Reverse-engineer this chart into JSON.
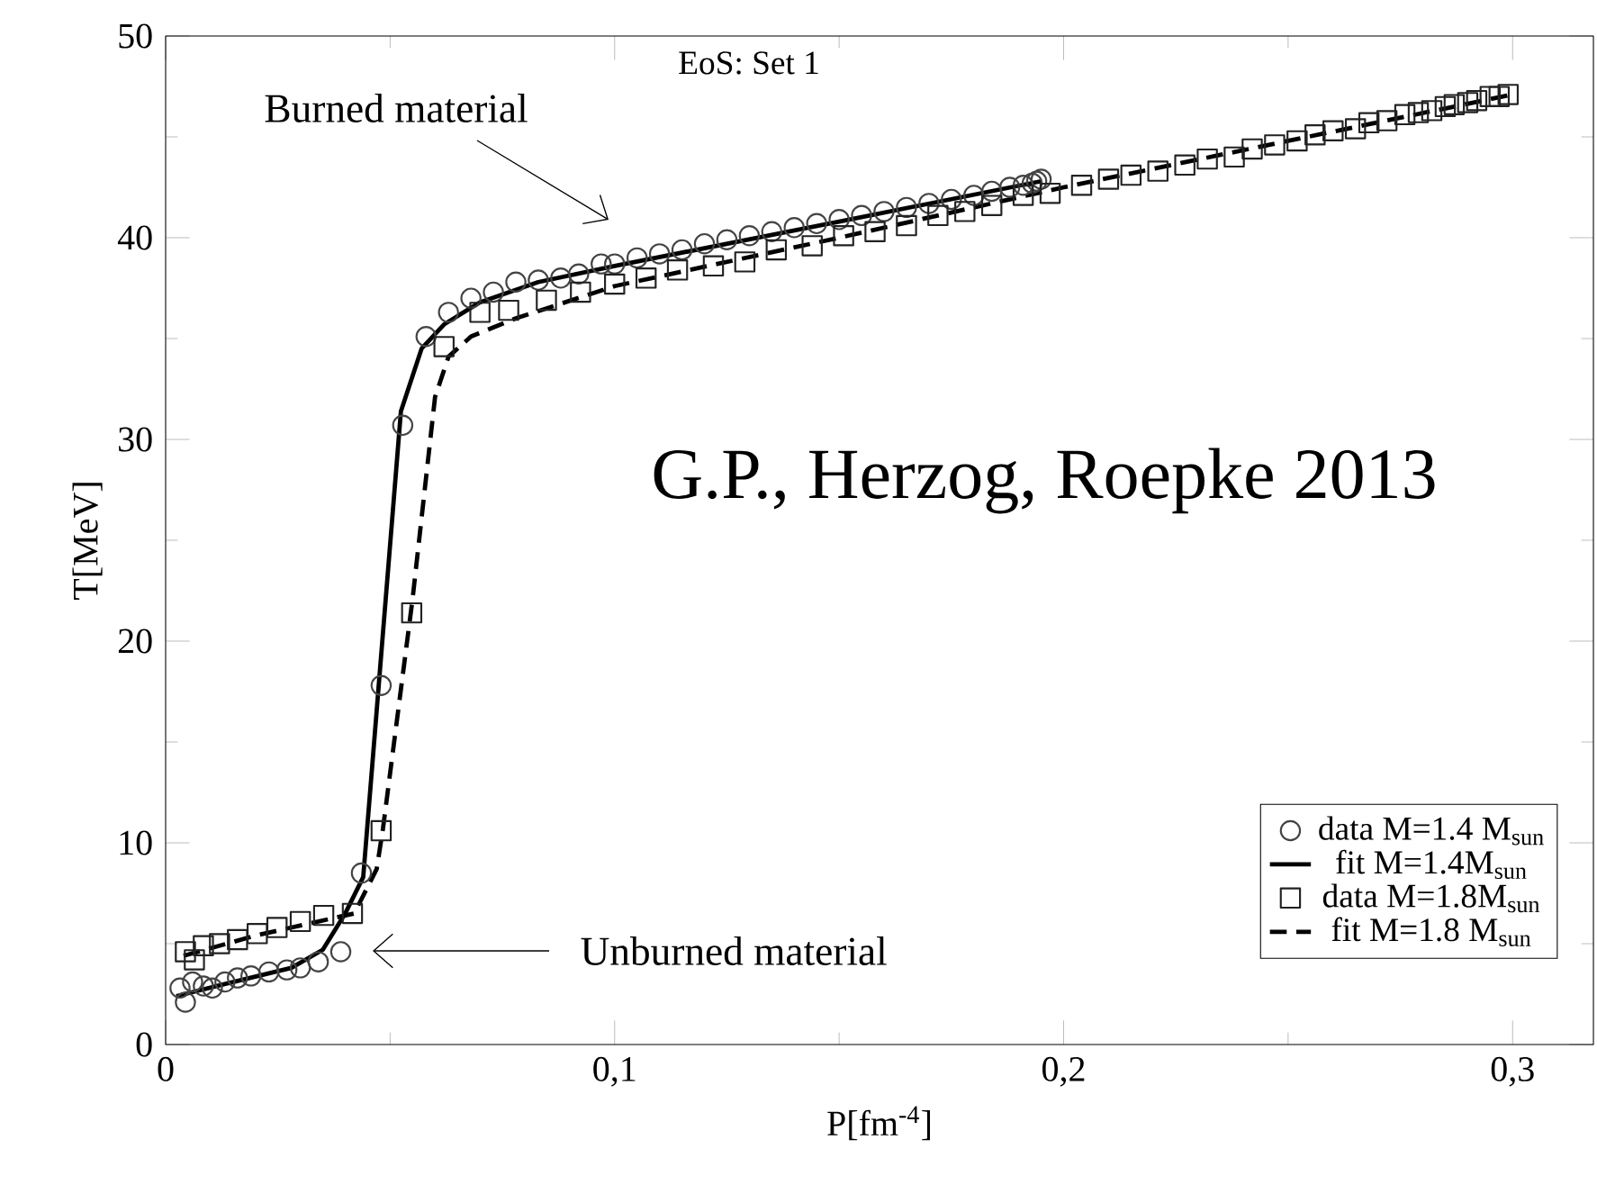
{
  "chart_data": {
    "type": "line",
    "xlabel": "P[fm$^{-4}$]",
    "ylabel": "T[MeV]",
    "xlim": [
      0,
      0.318
    ],
    "ylim": [
      0,
      50
    ],
    "xticks": [
      0,
      {
        "value": 0.1,
        "label": "0,1"
      },
      {
        "value": 0.2,
        "label": "0,2"
      },
      {
        "value": 0.3,
        "label": "0,3"
      }
    ],
    "yticks": [
      0,
      10,
      20,
      30,
      40,
      50
    ],
    "legend": "bottom right",
    "annotations": [
      "Burned material",
      "EoS: Set 1",
      "G.P., Herzog, Roepke 2013",
      "Unburned material"
    ],
    "series": [
      {
        "name": "data M=1.4 M$_{sun}$",
        "type": "scatter",
        "marker": "circle",
        "color": "#444444",
        "x": [
          0.0032,
          0.0044,
          0.006,
          0.0084,
          0.0104,
          0.0132,
          0.016,
          0.019,
          0.023,
          0.027,
          0.03,
          0.034,
          0.039,
          0.0436,
          0.048,
          0.0528,
          0.058,
          0.063,
          0.068,
          0.073,
          0.078,
          0.083,
          0.088,
          0.092,
          0.097,
          0.1,
          0.105,
          0.11,
          0.115,
          0.12,
          0.125,
          0.13,
          0.135,
          0.14,
          0.145,
          0.15,
          0.155,
          0.16,
          0.165,
          0.17,
          0.175,
          0.18,
          0.184,
          0.188,
          0.191,
          0.193,
          0.194,
          0.195
        ],
        "values": [
          2.8,
          2.1,
          3.1,
          2.9,
          2.8,
          3.1,
          3.3,
          3.4,
          3.6,
          3.7,
          3.8,
          4.1,
          4.6,
          8.5,
          17.8,
          30.7,
          35.1,
          36.3,
          37.0,
          37.3,
          37.8,
          37.9,
          38.0,
          38.2,
          38.7,
          38.7,
          39.0,
          39.2,
          39.4,
          39.7,
          39.9,
          40.1,
          40.3,
          40.5,
          40.7,
          40.9,
          41.1,
          41.3,
          41.5,
          41.7,
          41.9,
          42.1,
          42.3,
          42.5,
          42.6,
          42.7,
          42.8,
          42.9
        ]
      },
      {
        "name": "fit  M=1.4M$_{sun}$",
        "line_style": "solid",
        "color": "#000000",
        "x": [
          0.0024,
          0.015,
          0.028,
          0.035,
          0.04,
          0.044,
          0.0524,
          0.057,
          0.062,
          0.07,
          0.083,
          0.1,
          0.15,
          0.195
        ],
        "values": [
          2.4,
          3.1,
          3.8,
          4.7,
          6.5,
          8.3,
          31.4,
          34.5,
          35.7,
          36.8,
          37.8,
          38.6,
          40.8,
          42.8
        ]
      },
      {
        "name": "data M=1.8M$_{sun}$",
        "type": "scatter",
        "marker": "square",
        "color": "#222222",
        "x": [
          0.0044,
          0.0064,
          0.0084,
          0.012,
          0.016,
          0.0204,
          0.0248,
          0.03,
          0.0352,
          0.0416,
          0.048,
          0.0548,
          0.062,
          0.07,
          0.0764,
          0.0848,
          0.0924,
          0.1,
          0.107,
          0.114,
          0.122,
          0.129,
          0.136,
          0.144,
          0.151,
          0.158,
          0.165,
          0.172,
          0.178,
          0.184,
          0.191,
          0.197,
          0.204,
          0.21,
          0.215,
          0.221,
          0.227,
          0.232,
          0.238,
          0.242,
          0.247,
          0.252,
          0.256,
          0.26,
          0.265,
          0.268,
          0.272,
          0.276,
          0.279,
          0.282,
          0.285,
          0.287,
          0.29,
          0.292,
          0.295,
          0.297,
          0.299
        ],
        "values": [
          4.6,
          4.2,
          4.9,
          5.0,
          5.2,
          5.5,
          5.8,
          6.1,
          6.4,
          6.5,
          10.6,
          21.4,
          34.6,
          36.3,
          36.4,
          36.9,
          37.3,
          37.7,
          38.0,
          38.4,
          38.6,
          38.8,
          39.4,
          39.6,
          40.1,
          40.3,
          40.6,
          41.1,
          41.3,
          41.6,
          42.1,
          42.2,
          42.6,
          42.9,
          43.1,
          43.3,
          43.6,
          43.9,
          44.0,
          44.4,
          44.6,
          44.8,
          45.1,
          45.3,
          45.4,
          45.7,
          45.8,
          46.1,
          46.2,
          46.3,
          46.5,
          46.6,
          46.7,
          46.8,
          47.0,
          47.0,
          47.1
        ]
      },
      {
        "name": "fit  M=1.8 M$_{sun}$",
        "line_style": "dashed",
        "color": "#000000",
        "x": [
          0.004,
          0.02,
          0.042,
          0.047,
          0.0484,
          0.055,
          0.06,
          0.063,
          0.068,
          0.078,
          0.1,
          0.15,
          0.2,
          0.25,
          0.3
        ],
        "values": [
          4.4,
          5.4,
          6.5,
          8.7,
          10.7,
          22.1,
          32.1,
          34.1,
          35.1,
          36.0,
          37.6,
          40.0,
          42.5,
          44.8,
          47.1
        ]
      }
    ]
  }
}
